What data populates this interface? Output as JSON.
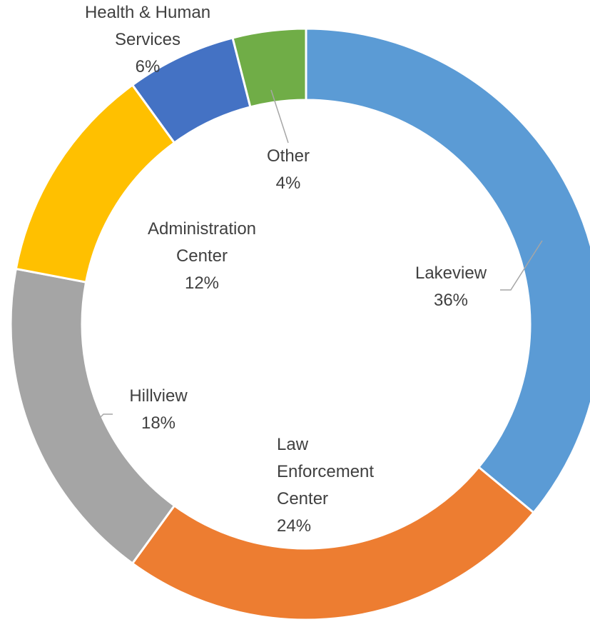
{
  "chart_data": {
    "type": "pie",
    "donut": true,
    "title": "",
    "categories": [
      "Lakeview",
      "Law Enforcement Center",
      "Hillview",
      "Administration Center",
      "Health & Human Services",
      "Other"
    ],
    "values": [
      36,
      24,
      18,
      12,
      6,
      4
    ],
    "value_labels": [
      "36%",
      "24%",
      "18%",
      "12%",
      "6%",
      "4%"
    ],
    "label_lines": [
      [
        "Lakeview"
      ],
      [
        "Law",
        "Enforcement",
        "Center"
      ],
      [
        "Hillview"
      ],
      [
        "Administration",
        "Center"
      ],
      [
        "Health & Human",
        "Services"
      ],
      [
        "Other"
      ]
    ],
    "colors": [
      "#5B9BD5",
      "#ED7D31",
      "#A5A5A5",
      "#FFC000",
      "#4472C4",
      "#70AD47"
    ],
    "legend": "none",
    "data_labels": "category name and percentage"
  }
}
